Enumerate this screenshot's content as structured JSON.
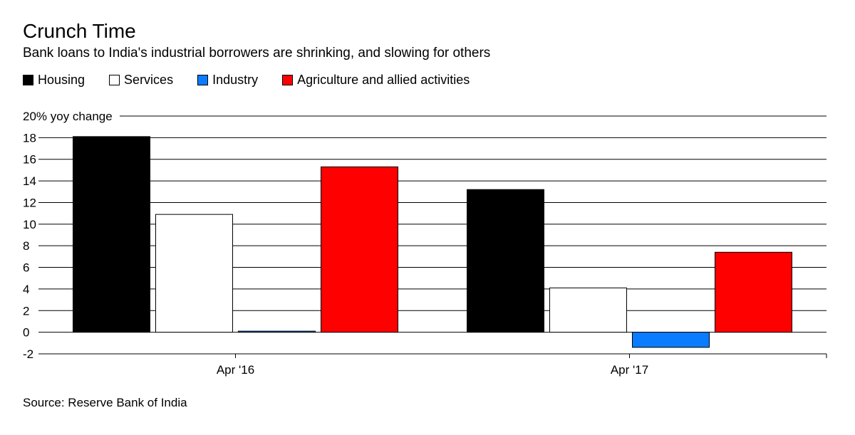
{
  "title": "Crunch Time",
  "subtitle": "Bank loans to India's industrial borrowers are shrinking, and slowing for others",
  "source": "Source: Reserve Bank of India",
  "chart_data": {
    "type": "bar",
    "categories": [
      "Apr '16",
      "Apr '17"
    ],
    "series": [
      {
        "name": "Housing",
        "color": "#000000",
        "values": [
          18.1,
          13.2
        ]
      },
      {
        "name": "Services",
        "color": "#ffffff",
        "values": [
          10.9,
          4.1
        ]
      },
      {
        "name": "Industry",
        "color": "#0a7cff",
        "values": [
          0.1,
          -1.4
        ]
      },
      {
        "name": "Agriculture and allied activities",
        "color": "#ff0000",
        "values": [
          15.3,
          7.4
        ]
      }
    ],
    "ylim": [
      -2,
      20
    ],
    "yticks": [
      -2,
      0,
      2,
      4,
      6,
      8,
      10,
      12,
      14,
      16,
      18,
      20
    ],
    "ylabel": "20% yoy change",
    "grid": true,
    "legend_position": "top-left"
  }
}
